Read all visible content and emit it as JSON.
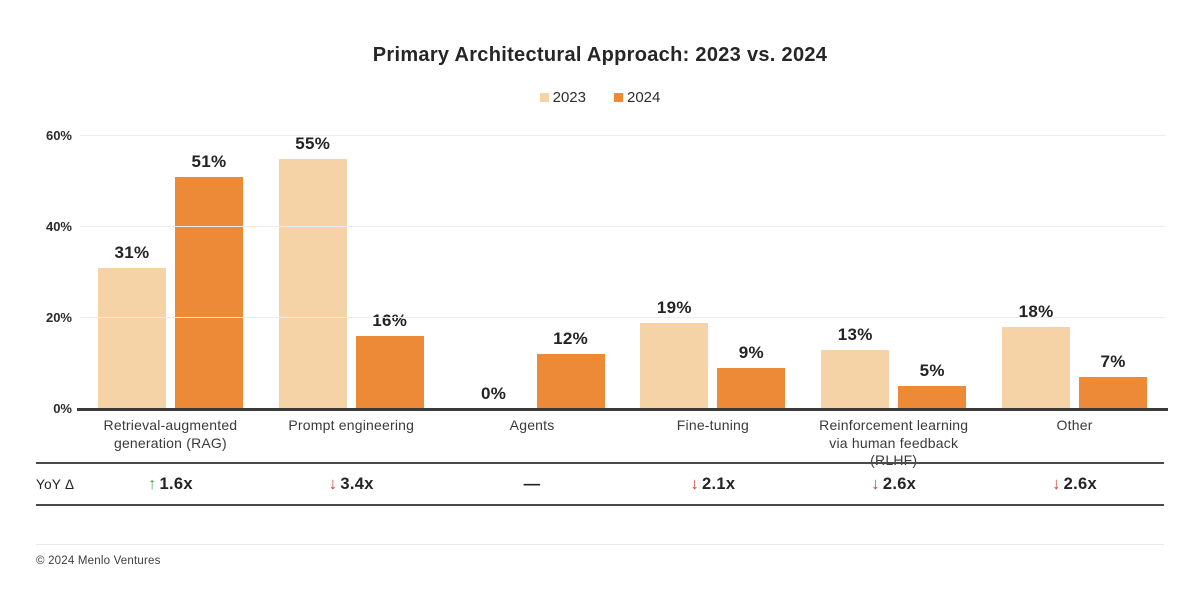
{
  "title": "Primary Architectural Approach: 2023 vs. 2024",
  "chart_data": {
    "type": "bar",
    "title": "Primary Architectural Approach: 2023 vs. 2024",
    "categories": [
      "Retrieval-augmented generation (RAG)",
      "Prompt engineering",
      "Agents",
      "Fine-tuning",
      "Reinforcement learning via human feedback (RLHF)",
      "Other"
    ],
    "series": [
      {
        "name": "2023",
        "color": "#F6D3A6",
        "values": [
          31,
          55,
          0,
          19,
          13,
          18
        ]
      },
      {
        "name": "2024",
        "color": "#EC8A37",
        "values": [
          51,
          16,
          12,
          9,
          5,
          7
        ]
      }
    ],
    "value_suffix": "%",
    "ylabel": "",
    "xlabel": "",
    "yticks": [
      0,
      20,
      40,
      60
    ],
    "ytick_suffix": "%",
    "ylim": [
      0,
      60
    ],
    "grid": true,
    "legend_position": "top-center"
  },
  "yoy": {
    "label": "YoY Δ",
    "deltas": [
      {
        "direction": "up",
        "value": "1.6x"
      },
      {
        "direction": "down",
        "value": "3.4x"
      },
      {
        "direction": "none",
        "value": "—"
      },
      {
        "direction": "down",
        "value": "2.1x"
      },
      {
        "direction": "down",
        "value": "2.6x"
      },
      {
        "direction": "down",
        "value": "2.6x"
      }
    ],
    "up_color": "#4AA45C",
    "down_color": "#D43A2A"
  },
  "footer": {
    "copyright": "© 2024 Menlo Ventures"
  },
  "colors": {
    "series_2023": "#F6D3A6",
    "series_2024": "#EC8A37",
    "axis_line": "#3a3a3a",
    "gridline": "#ececec",
    "text_dark": "#262626"
  }
}
